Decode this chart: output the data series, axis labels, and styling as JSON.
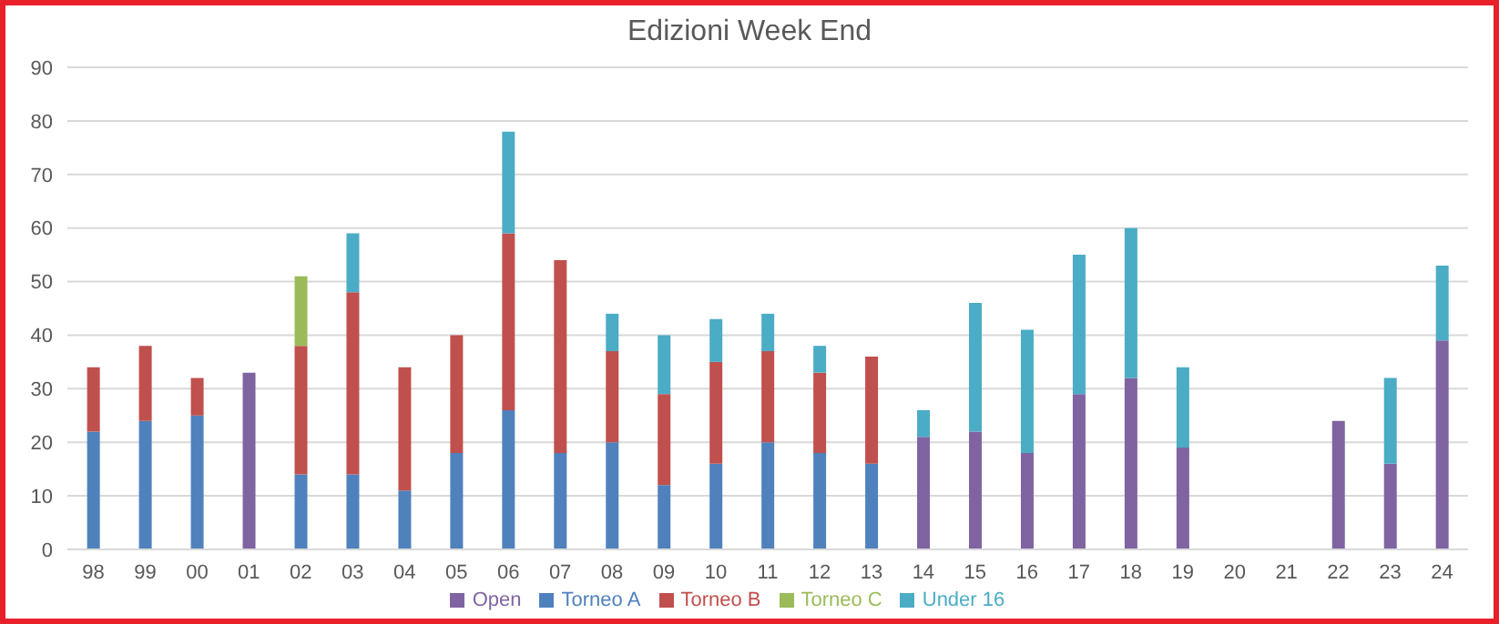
{
  "chart_data": {
    "type": "bar",
    "title": "Edizioni Week End",
    "stacked": true,
    "categories": [
      "98",
      "99",
      "00",
      "01",
      "02",
      "03",
      "04",
      "05",
      "06",
      "07",
      "08",
      "09",
      "10",
      "11",
      "12",
      "13",
      "14",
      "15",
      "16",
      "17",
      "18",
      "19",
      "20",
      "21",
      "22",
      "23",
      "24"
    ],
    "series": [
      {
        "name": "Torneo A",
        "color": "#4f81bd",
        "values": [
          22,
          24,
          25,
          null,
          14,
          14,
          11,
          18,
          26,
          18,
          20,
          12,
          16,
          20,
          18,
          16,
          null,
          null,
          null,
          null,
          null,
          null,
          null,
          null,
          null,
          null,
          null
        ]
      },
      {
        "name": "Torneo B",
        "color": "#c0504d",
        "values": [
          12,
          14,
          7,
          null,
          24,
          34,
          23,
          22,
          33,
          36,
          17,
          17,
          19,
          17,
          15,
          20,
          null,
          null,
          null,
          null,
          null,
          null,
          null,
          null,
          null,
          null,
          null
        ]
      },
      {
        "name": "Torneo C",
        "color": "#9bbb59",
        "values": [
          null,
          null,
          null,
          null,
          13,
          null,
          null,
          null,
          null,
          null,
          null,
          null,
          null,
          null,
          null,
          null,
          null,
          null,
          null,
          null,
          null,
          null,
          null,
          null,
          null,
          null,
          null
        ]
      },
      {
        "name": "Open",
        "color": "#8064a2",
        "values": [
          null,
          null,
          null,
          33,
          null,
          null,
          null,
          null,
          null,
          null,
          null,
          null,
          null,
          null,
          null,
          null,
          21,
          22,
          18,
          29,
          32,
          19,
          null,
          null,
          24,
          16,
          39
        ]
      },
      {
        "name": "Under 16",
        "color": "#4bacc6",
        "values": [
          null,
          null,
          null,
          null,
          null,
          11,
          null,
          null,
          19,
          null,
          7,
          11,
          8,
          7,
          5,
          null,
          5,
          24,
          23,
          26,
          28,
          15,
          null,
          null,
          null,
          16,
          14
        ]
      }
    ],
    "ylim": [
      0,
      90
    ],
    "yticks": [
      0,
      10,
      20,
      30,
      40,
      50,
      60,
      70,
      80,
      90
    ],
    "grid": "y",
    "legend": "bottom"
  }
}
